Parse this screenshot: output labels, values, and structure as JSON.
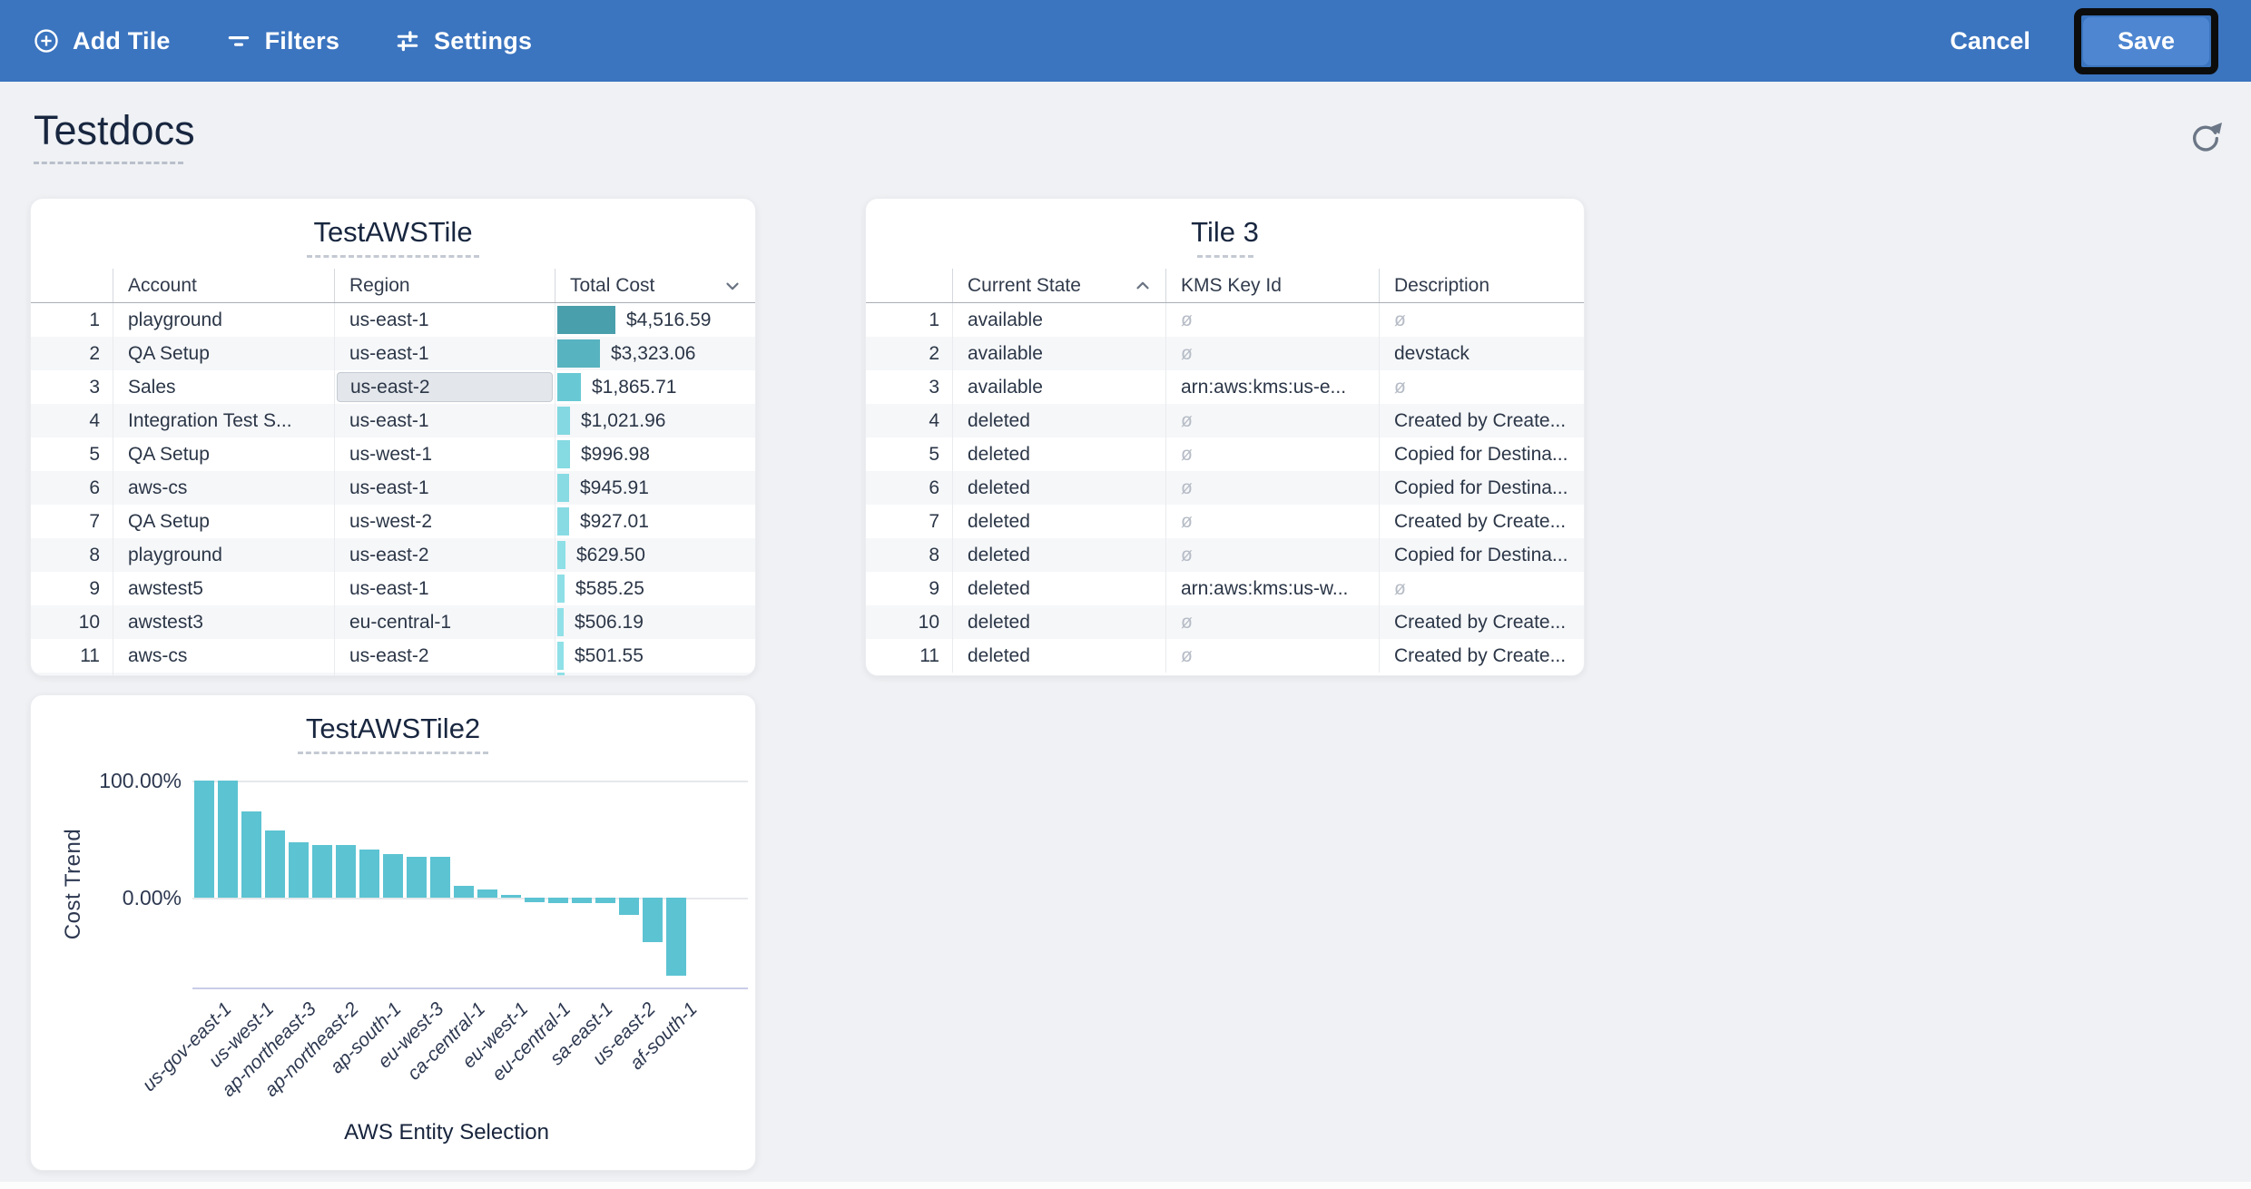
{
  "toolbar": {
    "bg_color": "#3b74bf",
    "add_tile_label": "Add Tile",
    "filters_label": "Filters",
    "settings_label": "Settings",
    "cancel_label": "Cancel",
    "save_label": "Save"
  },
  "page": {
    "title": "Testdocs"
  },
  "tiles": {
    "test_aws_tile": {
      "title": "TestAWSTile",
      "underline_width": 190,
      "columns": [
        "Account",
        "Region",
        "Total Cost"
      ],
      "sort_column": "Total Cost",
      "sort_direction": "desc",
      "max_value": 4516.59,
      "selected_cell": {
        "row": 3,
        "column": "Region"
      },
      "rows": [
        {
          "n": "1",
          "account": "playground",
          "region": "us-east-1",
          "total_cost": "$4,516.59",
          "value": 4516.59,
          "bar_color": "#4a9fac"
        },
        {
          "n": "2",
          "account": "QA Setup",
          "region": "us-east-1",
          "total_cost": "$3,323.06",
          "value": 3323.06,
          "bar_color": "#57b3bf"
        },
        {
          "n": "3",
          "account": "Sales",
          "region": "us-east-2",
          "total_cost": "$1,865.71",
          "value": 1865.71,
          "bar_color": "#68c9d4",
          "region_selected": true
        },
        {
          "n": "4",
          "account": "Integration Test S...",
          "region": "us-east-1",
          "total_cost": "$1,021.96",
          "value": 1021.96,
          "bar_color": "#83d8e1"
        },
        {
          "n": "5",
          "account": "QA Setup",
          "region": "us-west-1",
          "total_cost": "$996.98",
          "value": 996.98,
          "bar_color": "#86dae2"
        },
        {
          "n": "6",
          "account": "aws-cs",
          "region": "us-east-1",
          "total_cost": "$945.91",
          "value": 945.91,
          "bar_color": "#88dbe3"
        },
        {
          "n": "7",
          "account": "QA Setup",
          "region": "us-west-2",
          "total_cost": "$927.01",
          "value": 927.01,
          "bar_color": "#88dbe3"
        },
        {
          "n": "8",
          "account": "playground",
          "region": "us-east-2",
          "total_cost": "$629.50",
          "value": 629.5,
          "bar_color": "#8edfe6"
        },
        {
          "n": "9",
          "account": "awstest5",
          "region": "us-east-1",
          "total_cost": "$585.25",
          "value": 585.25,
          "bar_color": "#8fdfe6"
        },
        {
          "n": "10",
          "account": "awstest3",
          "region": "eu-central-1",
          "total_cost": "$506.19",
          "value": 506.19,
          "bar_color": "#90e0e7"
        },
        {
          "n": "11",
          "account": "aws-cs",
          "region": "us-east-2",
          "total_cost": "$501.55",
          "value": 501.55,
          "bar_color": "#90e0e7"
        },
        {
          "partial": true,
          "bar_color": "#8fe0e7"
        }
      ]
    },
    "tile3": {
      "title": "Tile 3",
      "underline_width": 62,
      "columns": [
        "Current State",
        "KMS Key Id",
        "Description"
      ],
      "sort_column": "Current State",
      "sort_direction": "asc",
      "null_symbol": "ø",
      "rows": [
        {
          "n": "1",
          "current_state": "available",
          "kms_key_id": null,
          "description": null
        },
        {
          "n": "2",
          "current_state": "available",
          "kms_key_id": null,
          "description": "devstack"
        },
        {
          "n": "3",
          "current_state": "available",
          "kms_key_id": "arn:aws:kms:us-e...",
          "description": null
        },
        {
          "n": "4",
          "current_state": "deleted",
          "kms_key_id": null,
          "description": "Created by Create..."
        },
        {
          "n": "5",
          "current_state": "deleted",
          "kms_key_id": null,
          "description": "Copied for Destina..."
        },
        {
          "n": "6",
          "current_state": "deleted",
          "kms_key_id": null,
          "description": "Copied for Destina..."
        },
        {
          "n": "7",
          "current_state": "deleted",
          "kms_key_id": null,
          "description": "Created by Create..."
        },
        {
          "n": "8",
          "current_state": "deleted",
          "kms_key_id": null,
          "description": "Copied for Destina..."
        },
        {
          "n": "9",
          "current_state": "deleted",
          "kms_key_id": "arn:aws:kms:us-w...",
          "description": null
        },
        {
          "n": "10",
          "current_state": "deleted",
          "kms_key_id": null,
          "description": "Created by Create..."
        },
        {
          "n": "11",
          "current_state": "deleted",
          "kms_key_id": null,
          "description": "Created by Create..."
        }
      ]
    }
  },
  "chart_data": {
    "type": "bar",
    "title": "TestAWSTile2",
    "underline_width": 210,
    "xlabel": "AWS Entity Selection",
    "ylabel": "Cost Trend",
    "y_tick_labels": [
      "100.00%",
      "0.00%"
    ],
    "ylim": [
      -75,
      105
    ],
    "grid": "horizontal lines at 100% and 0% only",
    "legend": "none",
    "bar_color": "#5cc3d2",
    "values": [
      100,
      100,
      74,
      57,
      47,
      45,
      45,
      41,
      37,
      35,
      35,
      10,
      7,
      2,
      -4,
      -5,
      -5,
      -5,
      -15,
      -38,
      -67
    ],
    "x_tick_labels": [
      "us-gov-east-1",
      "us-west-1",
      "ap-northeast-3",
      "ap-northeast-2",
      "ap-south-1",
      "eu-west-3",
      "ca-central-1",
      "eu-west-1",
      "eu-central-1",
      "sa-east-1",
      "us-east-2",
      "af-south-1"
    ]
  }
}
